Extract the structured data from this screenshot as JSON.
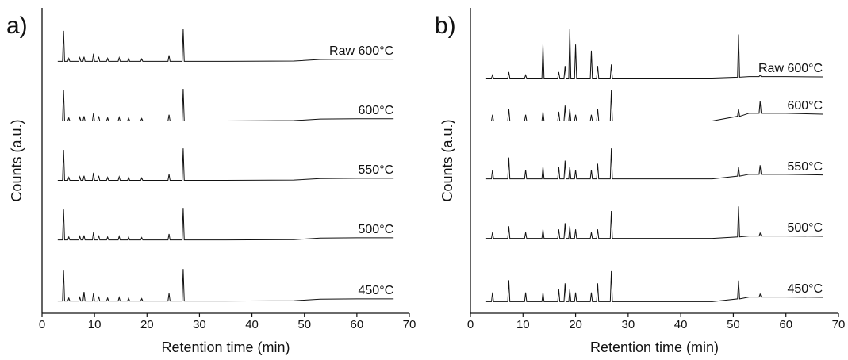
{
  "chart_data": [
    {
      "type": "line",
      "label": "a)",
      "xlabel": "Retention time (min)",
      "ylabel": "Counts (a.u.)",
      "xlim": [
        0,
        70
      ],
      "xticks": [
        0,
        10,
        20,
        30,
        40,
        50,
        60,
        70
      ],
      "ylim": [
        0,
        100
      ],
      "x": [
        3,
        3.9,
        4.1,
        4.3,
        4.9,
        5.1,
        5.3,
        7,
        7.2,
        7.4,
        7.8,
        8,
        8.2,
        9.6,
        9.8,
        10,
        10.6,
        10.8,
        11,
        12.3,
        12.5,
        12.7,
        14.5,
        14.7,
        14.9,
        16.3,
        16.5,
        16.7,
        18.8,
        19,
        19.2,
        24,
        24.2,
        24.4,
        26.7,
        26.9,
        27.1,
        35,
        48,
        53,
        60,
        67
      ],
      "series": [
        {
          "name": "Raw 600°C",
          "color": "#111111",
          "values": [
            82.5,
            82.5,
            92.5,
            82.5,
            82.5,
            83.5,
            82.5,
            82.5,
            83.7,
            82.5,
            82.5,
            84,
            82.5,
            82.5,
            85,
            82.5,
            82.5,
            84,
            82.5,
            82.5,
            83.5,
            82.5,
            82.5,
            83.7,
            82.5,
            82.5,
            83.5,
            82.5,
            82.5,
            83.3,
            82.5,
            82.5,
            84.5,
            82.5,
            82.5,
            93,
            82.5,
            82.5,
            82.6,
            83.1,
            83.2,
            83.2
          ]
        },
        {
          "name": "600°C",
          "color": "#111111",
          "values": [
            63,
            63,
            73,
            63,
            63,
            64,
            63,
            63,
            64.2,
            63,
            63,
            64.5,
            63,
            63,
            65.5,
            63,
            63,
            64.5,
            63,
            63,
            64,
            63,
            63,
            64.2,
            63,
            63,
            64,
            63,
            63,
            63.8,
            63,
            63,
            65,
            63,
            63,
            73.5,
            63,
            63,
            63.1,
            63.6,
            63.7,
            63.7
          ]
        },
        {
          "name": "550°C",
          "color": "#111111",
          "values": [
            43.5,
            43.5,
            53.5,
            43.5,
            43.5,
            44.5,
            43.5,
            43.5,
            44.7,
            43.5,
            43.5,
            45,
            43.5,
            43.5,
            46,
            43.5,
            43.5,
            45,
            43.5,
            43.5,
            44.5,
            43.5,
            43.5,
            44.7,
            43.5,
            43.5,
            44.5,
            43.5,
            43.5,
            44.3,
            43.5,
            43.5,
            45.5,
            43.5,
            43.5,
            54,
            43.5,
            43.5,
            43.6,
            44.1,
            44.2,
            44.2
          ]
        },
        {
          "name": "500°C",
          "color": "#111111",
          "values": [
            24,
            24,
            34,
            24,
            24,
            25,
            24,
            24,
            25.2,
            24,
            24,
            25.5,
            24,
            24,
            26.5,
            24,
            24,
            25.5,
            24,
            24,
            25,
            24,
            24,
            25.2,
            24,
            24,
            25,
            24,
            24,
            24.8,
            24,
            24,
            26,
            24,
            24,
            34.5,
            24,
            24,
            24.1,
            24.6,
            24.7,
            24.7
          ]
        },
        {
          "name": "450°C",
          "color": "#111111",
          "values": [
            4,
            4,
            14,
            4,
            4,
            5,
            4,
            4,
            5.2,
            4,
            4,
            7,
            4,
            4,
            6.5,
            4,
            4,
            5.5,
            4,
            4,
            5,
            4,
            4,
            5.2,
            4,
            4,
            5,
            4,
            4,
            4.8,
            4,
            4,
            6.5,
            4,
            4,
            14.5,
            4,
            4,
            4.1,
            4.6,
            4.7,
            4.7
          ]
        }
      ]
    },
    {
      "type": "line",
      "label": "b)",
      "xlabel": "Retention time (min)",
      "ylabel": "Counts (a.u.)",
      "xlim": [
        0,
        70
      ],
      "xticks": [
        0,
        10,
        20,
        30,
        40,
        50,
        60,
        70
      ],
      "ylim": [
        0,
        100
      ],
      "x": [
        3,
        4,
        4.2,
        4.4,
        7.1,
        7.3,
        7.5,
        10.3,
        10.5,
        10.7,
        13.6,
        13.8,
        14,
        16.6,
        16.8,
        17,
        17.8,
        18,
        18.2,
        18.7,
        18.9,
        19.1,
        19.8,
        20,
        20.2,
        22.8,
        23,
        23.2,
        24,
        24.2,
        24.4,
        26.6,
        26.8,
        27,
        35,
        46,
        50.8,
        51,
        51.2,
        53,
        54.9,
        55.1,
        55.3,
        60,
        67
      ],
      "series": [
        {
          "name": "Raw 600°C",
          "color": "#111111",
          "values": [
            77,
            77,
            78,
            77,
            77,
            79,
            77,
            77,
            78,
            77,
            77,
            88,
            77,
            77,
            79,
            77,
            77,
            81,
            77,
            77,
            93,
            77,
            77,
            88,
            77,
            77,
            86,
            77,
            77,
            81,
            77,
            77,
            81.5,
            77,
            77,
            77,
            77.3,
            91.3,
            77.3,
            77.5,
            77.5,
            78,
            77.5,
            77.5,
            77.4
          ]
        },
        {
          "name": "600°C",
          "color": "#111111",
          "values": [
            63,
            63,
            65,
            63,
            63,
            67,
            63,
            63,
            65,
            63,
            63,
            66,
            63,
            63,
            66,
            63,
            63,
            68,
            63,
            63,
            67,
            63,
            63,
            65,
            63,
            63,
            65,
            63,
            63,
            67,
            63,
            63,
            73,
            63,
            63,
            63,
            64.5,
            67,
            64.5,
            65.5,
            65.5,
            69.5,
            65.5,
            65.5,
            65.2
          ]
        },
        {
          "name": "550°C",
          "color": "#111111",
          "values": [
            44,
            44,
            47,
            44,
            44,
            51,
            44,
            44,
            47,
            44,
            44,
            48,
            44,
            44,
            48,
            44,
            44,
            50,
            44,
            44,
            48,
            44,
            44,
            47,
            44,
            44,
            47,
            44,
            44,
            49,
            44,
            44,
            54,
            44,
            44,
            44,
            44.9,
            47.9,
            44.9,
            45.5,
            45.5,
            48.5,
            45.5,
            45.5,
            45.3
          ]
        },
        {
          "name": "500°C",
          "color": "#111111",
          "values": [
            24.5,
            24.5,
            26.5,
            24.5,
            24.5,
            28.5,
            24.5,
            24.5,
            26.5,
            24.5,
            24.5,
            27.5,
            24.5,
            24.5,
            27.5,
            24.5,
            24.5,
            29.5,
            24.5,
            24.5,
            28.5,
            24.5,
            24.5,
            27.5,
            24.5,
            24.5,
            26.5,
            24.5,
            24.5,
            27.5,
            24.5,
            24.5,
            33.5,
            24.5,
            24.5,
            24.5,
            25,
            35,
            25,
            25.3,
            25.3,
            26.3,
            25.3,
            25.3,
            25.2
          ]
        },
        {
          "name": "450°C",
          "color": "#111111",
          "values": [
            3.8,
            3.8,
            6.8,
            3.8,
            3.8,
            10.8,
            3.8,
            3.8,
            6.8,
            3.8,
            3.8,
            6.8,
            3.8,
            3.8,
            7.8,
            3.8,
            3.8,
            9.8,
            3.8,
            3.8,
            7.8,
            3.8,
            3.8,
            6.8,
            3.8,
            3.8,
            6.8,
            3.8,
            3.8,
            9.8,
            3.8,
            3.8,
            13.8,
            3.8,
            3.8,
            3.8,
            4.7,
            10.7,
            4.7,
            5.3,
            5.3,
            6.3,
            5.3,
            5.3,
            5.2
          ]
        }
      ]
    }
  ]
}
